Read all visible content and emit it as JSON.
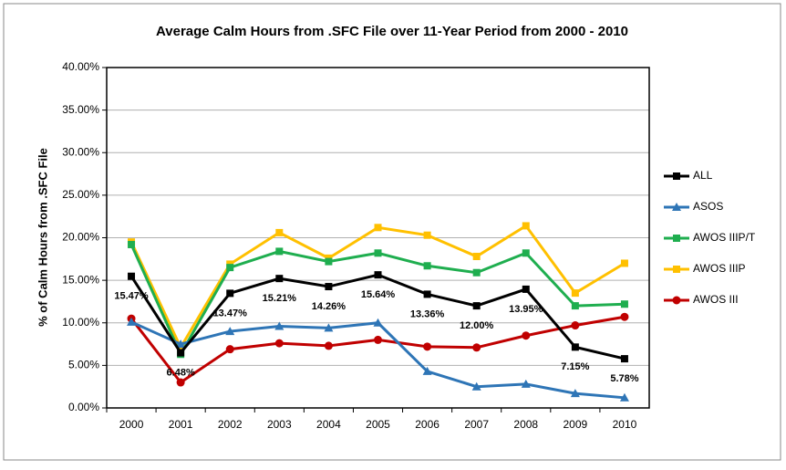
{
  "chart_data": {
    "type": "line",
    "title": "Average Calm Hours from .SFC File over 11-Year Period from 2000 - 2010",
    "y_label": "% of Calm Hours from .SFC File",
    "categories": [
      "2000",
      "2001",
      "2002",
      "2003",
      "2004",
      "2005",
      "2006",
      "2007",
      "2008",
      "2009",
      "2010"
    ],
    "series": [
      {
        "name": "ALL",
        "color": "#000000",
        "marker": "square",
        "values": [
          15.47,
          6.48,
          13.47,
          15.21,
          14.26,
          15.64,
          13.36,
          12.0,
          13.95,
          7.15,
          5.78
        ],
        "value_labels": [
          "15.47%",
          "6.48%",
          "13.47%",
          "15.21%",
          "14.26%",
          "15.64%",
          "13.36%",
          "12.00%",
          "13.95%",
          "7.15%",
          "5.78%"
        ]
      },
      {
        "name": "ASOS",
        "color": "#2e75b6",
        "marker": "triangle",
        "values": [
          10.1,
          7.5,
          9.0,
          9.6,
          9.4,
          10.0,
          4.3,
          2.5,
          2.8,
          1.7,
          1.2
        ]
      },
      {
        "name": "AWOS IIIP/T",
        "color": "#1fae4f",
        "marker": "square",
        "values": [
          19.2,
          6.3,
          16.5,
          18.4,
          17.2,
          18.2,
          16.7,
          15.9,
          18.2,
          12.0,
          12.2
        ]
      },
      {
        "name": "AWOS IIIP",
        "color": "#ffc000",
        "marker": "square",
        "values": [
          19.5,
          7.1,
          16.9,
          20.6,
          17.6,
          21.2,
          20.3,
          17.8,
          21.4,
          13.5,
          17.0
        ]
      },
      {
        "name": "AWOS III",
        "color": "#c00000",
        "marker": "circle",
        "values": [
          10.5,
          3.0,
          6.9,
          7.6,
          7.3,
          8.0,
          7.2,
          7.1,
          8.5,
          9.7,
          10.7
        ]
      }
    ],
    "ylim": [
      0,
      40
    ],
    "yticks": [
      {
        "value": 0,
        "label": "0.00%"
      },
      {
        "value": 5,
        "label": "5.00%"
      },
      {
        "value": 10,
        "label": "10.00%"
      },
      {
        "value": 15,
        "label": "15.00%"
      },
      {
        "value": 20,
        "label": "20.00%"
      },
      {
        "value": 25,
        "label": "25.00%"
      },
      {
        "value": 30,
        "label": "30.00%"
      },
      {
        "value": 35,
        "label": "35.00%"
      },
      {
        "value": 40,
        "label": "40.00%"
      }
    ],
    "grid": true,
    "legend": "right"
  }
}
